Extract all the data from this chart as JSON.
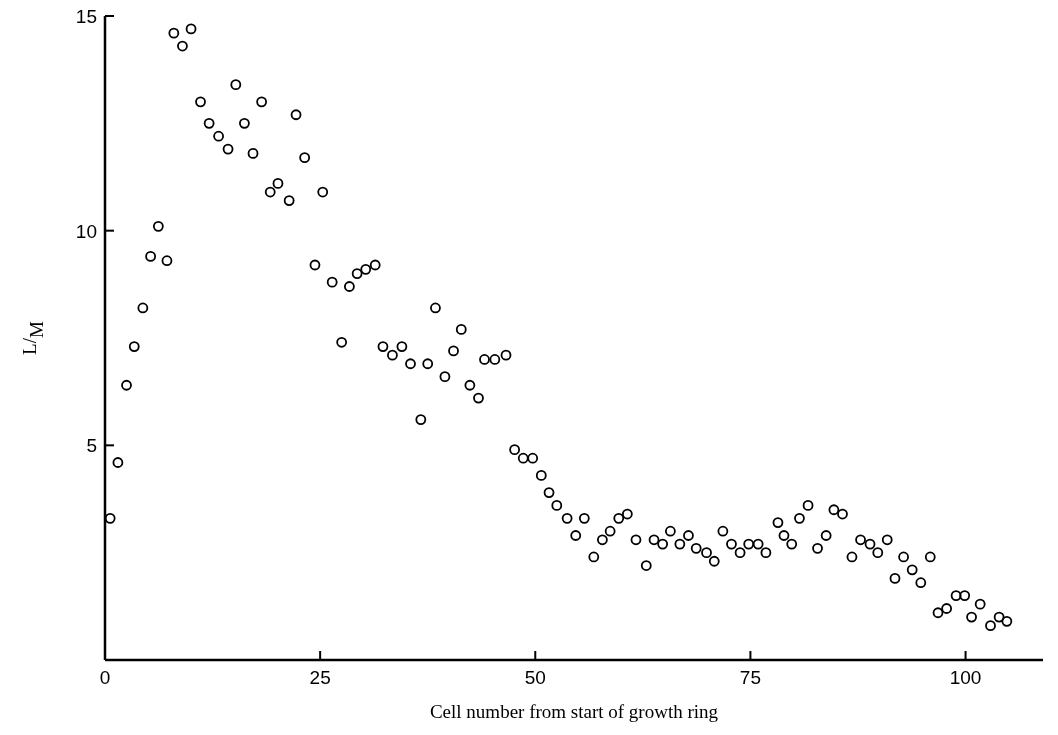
{
  "chart_data": {
    "type": "scatter",
    "xlabel": "Cell number from start of growth ring",
    "ylabel": "L/$_{M}$",
    "xlim": [
      0,
      109
    ],
    "ylim": [
      0,
      15
    ],
    "xticks": [
      0,
      25,
      50,
      75,
      100
    ],
    "yticks": [
      5,
      10,
      15
    ],
    "marker": "circle",
    "grid": false,
    "series": [
      {
        "color": "#000000",
        "x": [
          0.6,
          1.5,
          2.5,
          3.4,
          4.4,
          5.3,
          6.2,
          7.2,
          8.0,
          9.0,
          10.0,
          11.1,
          12.1,
          13.2,
          14.3,
          15.2,
          16.2,
          17.2,
          18.2,
          19.2,
          20.1,
          21.4,
          22.2,
          23.2,
          24.4,
          25.3,
          26.4,
          27.5,
          28.4,
          29.3,
          30.3,
          31.4,
          32.3,
          33.4,
          34.5,
          35.5,
          36.7,
          37.5,
          38.4,
          39.5,
          40.5,
          41.4,
          42.4,
          43.4,
          44.1,
          45.3,
          46.6,
          47.6,
          48.6,
          49.7,
          50.7,
          51.6,
          52.5,
          53.7,
          54.7,
          55.7,
          56.8,
          57.8,
          58.7,
          59.7,
          60.7,
          61.7,
          62.9,
          63.8,
          64.8,
          65.7,
          66.8,
          67.8,
          68.7,
          69.9,
          70.8,
          71.8,
          72.8,
          73.8,
          74.8,
          75.9,
          76.8,
          78.2,
          78.9,
          79.8,
          80.7,
          81.7,
          82.8,
          83.8,
          84.7,
          85.7,
          86.8,
          87.8,
          88.9,
          89.8,
          90.9,
          91.8,
          92.8,
          93.8,
          94.8,
          95.9,
          96.8,
          97.8,
          98.9,
          99.9,
          100.7,
          101.7,
          102.9,
          103.9,
          104.8
        ],
        "values": [
          3.3,
          4.6,
          6.4,
          7.3,
          8.2,
          9.4,
          10.1,
          9.3,
          14.6,
          14.3,
          14.7,
          13.0,
          12.5,
          12.2,
          11.9,
          13.4,
          12.5,
          11.8,
          13.0,
          10.9,
          11.1,
          10.7,
          12.7,
          11.7,
          9.2,
          10.9,
          8.8,
          7.4,
          8.7,
          9.0,
          9.1,
          9.2,
          7.3,
          7.1,
          7.3,
          6.9,
          5.6,
          6.9,
          8.2,
          6.6,
          7.2,
          7.7,
          6.4,
          6.1,
          7.0,
          7.0,
          7.1,
          4.9,
          4.7,
          4.7,
          4.3,
          3.9,
          3.6,
          3.3,
          2.9,
          3.3,
          2.4,
          2.8,
          3.0,
          3.3,
          3.4,
          2.8,
          2.2,
          2.8,
          2.7,
          3.0,
          2.7,
          2.9,
          2.6,
          2.5,
          2.3,
          3.0,
          2.7,
          2.5,
          2.7,
          2.7,
          2.5,
          3.2,
          2.9,
          2.7,
          3.3,
          3.6,
          2.6,
          2.9,
          3.5,
          3.4,
          2.4,
          2.8,
          2.7,
          2.5,
          2.8,
          1.9,
          2.4,
          2.1,
          1.8,
          2.4,
          1.1,
          1.2,
          1.5,
          1.5,
          1.0,
          1.3,
          0.8,
          1.0,
          0.9
        ]
      }
    ]
  }
}
